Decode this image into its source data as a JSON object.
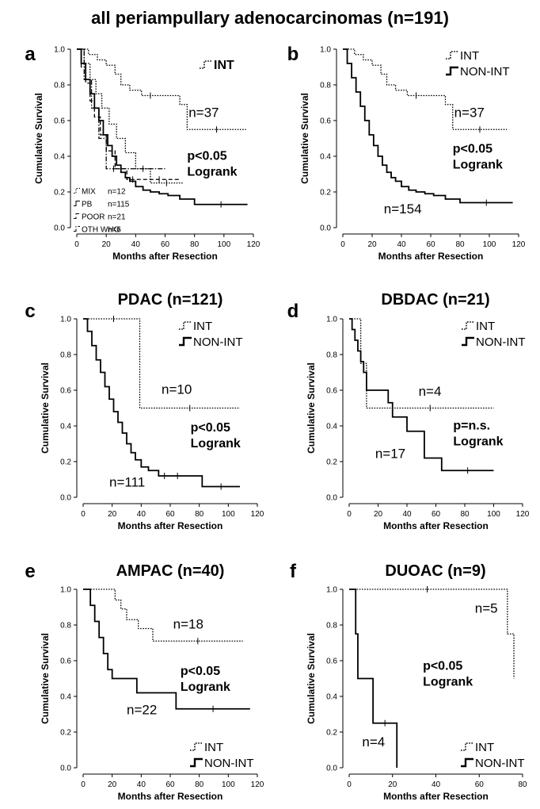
{
  "figure_title": "all periampullary adenocarcinomas (n=191)",
  "chart_data": [
    {
      "panel": "a",
      "title": "",
      "type": "line",
      "xlabel": "Months after Resection",
      "ylabel": "Cumulative Survival",
      "xlim": [
        0,
        120
      ],
      "ylim": [
        0,
        1
      ],
      "xticks": [
        0,
        20,
        40,
        60,
        80,
        100,
        120
      ],
      "yticks": [
        0.0,
        0.2,
        0.4,
        0.6,
        0.8,
        1.0
      ],
      "legend": [
        {
          "name": "INT",
          "style": "dotted"
        }
      ],
      "legend_small": [
        {
          "name": "MIX",
          "n": "n=12",
          "style": "dotted"
        },
        {
          "name": "PB",
          "n": "n=115",
          "style": "solid"
        },
        {
          "name": "POOR",
          "n": "n=21",
          "style": "dashed"
        },
        {
          "name": "OTH WHO",
          "n": "n=6",
          "style": "dashdot"
        }
      ],
      "annotations": [
        {
          "text": "n=37",
          "x": 76,
          "y": 0.62
        }
      ],
      "stat_lines": [
        "p<0.05",
        "Logrank"
      ],
      "stat_pos": [
        75,
        0.38
      ],
      "series": [
        {
          "name": "INT",
          "style": "dotted",
          "x": [
            0,
            8,
            14,
            20,
            26,
            30,
            36,
            44,
            56,
            70,
            75,
            115
          ],
          "y": [
            1.0,
            0.97,
            0.94,
            0.91,
            0.86,
            0.8,
            0.77,
            0.74,
            0.74,
            0.69,
            0.55,
            0.55
          ]
        },
        {
          "name": "PB",
          "style": "solid",
          "x": [
            0,
            3,
            6,
            9,
            12,
            15,
            18,
            21,
            24,
            27,
            30,
            33,
            36,
            40,
            45,
            50,
            56,
            62,
            70,
            80,
            116
          ],
          "y": [
            1.0,
            0.92,
            0.83,
            0.75,
            0.67,
            0.6,
            0.52,
            0.46,
            0.4,
            0.35,
            0.31,
            0.28,
            0.26,
            0.23,
            0.21,
            0.2,
            0.19,
            0.18,
            0.16,
            0.13,
            0.13
          ]
        },
        {
          "name": "MIX",
          "style": "dotted",
          "x": [
            0,
            5,
            9,
            13,
            17,
            22,
            27,
            33,
            40,
            50,
            72
          ],
          "y": [
            1.0,
            0.92,
            0.83,
            0.75,
            0.67,
            0.58,
            0.5,
            0.42,
            0.33,
            0.25,
            0.25
          ]
        },
        {
          "name": "POOR",
          "style": "dashed",
          "x": [
            0,
            3,
            6,
            9,
            12,
            16,
            20,
            26,
            34,
            42,
            70
          ],
          "y": [
            1.0,
            0.9,
            0.81,
            0.71,
            0.62,
            0.52,
            0.43,
            0.33,
            0.27,
            0.27,
            0.27
          ]
        },
        {
          "name": "OTH WHO",
          "style": "dashdot",
          "x": [
            0,
            5,
            10,
            15,
            20,
            30,
            60
          ],
          "y": [
            1.0,
            0.83,
            0.67,
            0.5,
            0.33,
            0.33,
            0.33
          ]
        }
      ]
    },
    {
      "panel": "b",
      "title": "",
      "type": "line",
      "xlabel": "Months after Resection",
      "ylabel": "Cumulative Survival",
      "xlim": [
        0,
        120
      ],
      "ylim": [
        0,
        1
      ],
      "xticks": [
        0,
        20,
        40,
        60,
        80,
        100,
        120
      ],
      "yticks": [
        0.0,
        0.2,
        0.4,
        0.6,
        0.8,
        1.0
      ],
      "legend": [
        {
          "name": "INT",
          "style": "dotted"
        },
        {
          "name": "NON-INT",
          "style": "solid"
        }
      ],
      "annotations": [
        {
          "text": "n=37",
          "x": 76,
          "y": 0.62
        },
        {
          "text": "n=154",
          "x": 28,
          "y": 0.08
        }
      ],
      "stat_lines": [
        "p<0.05",
        "Logrank"
      ],
      "stat_pos": [
        75,
        0.42
      ],
      "series": [
        {
          "name": "INT",
          "style": "dotted",
          "x": [
            0,
            8,
            14,
            20,
            26,
            30,
            36,
            44,
            56,
            70,
            75,
            112
          ],
          "y": [
            1.0,
            0.97,
            0.94,
            0.91,
            0.86,
            0.8,
            0.77,
            0.74,
            0.74,
            0.69,
            0.55,
            0.55
          ]
        },
        {
          "name": "NON-INT",
          "style": "solid",
          "x": [
            0,
            3,
            6,
            9,
            12,
            15,
            18,
            21,
            24,
            27,
            30,
            33,
            36,
            40,
            45,
            50,
            56,
            62,
            70,
            80,
            116
          ],
          "y": [
            1.0,
            0.92,
            0.84,
            0.76,
            0.68,
            0.6,
            0.52,
            0.46,
            0.4,
            0.35,
            0.31,
            0.28,
            0.26,
            0.23,
            0.21,
            0.2,
            0.19,
            0.18,
            0.16,
            0.14,
            0.14
          ]
        }
      ]
    },
    {
      "panel": "c",
      "title": "PDAC (n=121)",
      "type": "line",
      "xlabel": "Months after Resection",
      "ylabel": "Cumulative Survival",
      "xlim": [
        0,
        120
      ],
      "ylim": [
        0,
        1
      ],
      "xticks": [
        0,
        20,
        40,
        60,
        80,
        100,
        120
      ],
      "yticks": [
        0.0,
        0.2,
        0.4,
        0.6,
        0.8,
        1.0
      ],
      "legend": [
        {
          "name": "INT",
          "style": "dotted"
        },
        {
          "name": "NON-INT",
          "style": "solid"
        }
      ],
      "annotations": [
        {
          "text": "n=10",
          "x": 54,
          "y": 0.58
        },
        {
          "text": "n=111",
          "x": 18,
          "y": 0.06
        }
      ],
      "stat_lines": [
        "p<0.05",
        "Logrank"
      ],
      "stat_pos": [
        74,
        0.37
      ],
      "series": [
        {
          "name": "INT",
          "style": "dotted",
          "x": [
            0,
            3,
            39,
            39,
            108
          ],
          "y": [
            1.0,
            1.0,
            1.0,
            0.5,
            0.5
          ]
        },
        {
          "name": "NON-INT",
          "style": "solid",
          "x": [
            0,
            3,
            6,
            9,
            12,
            15,
            18,
            21,
            24,
            27,
            30,
            33,
            36,
            40,
            45,
            52,
            60,
            70,
            82,
            108
          ],
          "y": [
            1.0,
            0.93,
            0.85,
            0.77,
            0.7,
            0.62,
            0.55,
            0.48,
            0.42,
            0.36,
            0.3,
            0.25,
            0.21,
            0.17,
            0.15,
            0.12,
            0.12,
            0.12,
            0.06,
            0.06
          ]
        }
      ]
    },
    {
      "panel": "d",
      "title": "DBDAC (n=21)",
      "type": "line",
      "xlabel": "Months after Resection",
      "ylabel": "Cumulative Survival",
      "xlim": [
        0,
        120
      ],
      "ylim": [
        0,
        1
      ],
      "xticks": [
        0,
        20,
        40,
        60,
        80,
        100,
        120
      ],
      "yticks": [
        0.0,
        0.2,
        0.4,
        0.6,
        0.8,
        1.0
      ],
      "legend": [
        {
          "name": "INT",
          "style": "dotted"
        },
        {
          "name": "NON-INT",
          "style": "solid"
        }
      ],
      "annotations": [
        {
          "text": "n=4",
          "x": 48,
          "y": 0.57
        },
        {
          "text": "n=17",
          "x": 18,
          "y": 0.22
        }
      ],
      "stat_lines": [
        "p=n.s.",
        "Logrank"
      ],
      "stat_pos": [
        72,
        0.38
      ],
      "series": [
        {
          "name": "INT",
          "style": "dotted",
          "x": [
            0,
            8,
            11,
            12,
            100
          ],
          "y": [
            1.0,
            0.75,
            0.75,
            0.5,
            0.5
          ]
        },
        {
          "name": "NON-INT",
          "style": "solid",
          "x": [
            0,
            2,
            4,
            6,
            8,
            10,
            12,
            27,
            30,
            40,
            52,
            64,
            100
          ],
          "y": [
            1.0,
            0.94,
            0.88,
            0.82,
            0.76,
            0.7,
            0.6,
            0.53,
            0.45,
            0.37,
            0.22,
            0.15,
            0.15
          ]
        }
      ]
    },
    {
      "panel": "e",
      "title": "AMPAC (n=40)",
      "type": "line",
      "xlabel": "Months after Resection",
      "ylabel": "Cumulative Survival",
      "xlim": [
        0,
        120
      ],
      "ylim": [
        0,
        1
      ],
      "xticks": [
        0,
        20,
        40,
        60,
        80,
        100,
        120
      ],
      "yticks": [
        0.0,
        0.2,
        0.4,
        0.6,
        0.8,
        1.0
      ],
      "legend": [
        {
          "name": "INT",
          "style": "dotted"
        },
        {
          "name": "NON-INT",
          "style": "solid"
        }
      ],
      "annotations": [
        {
          "text": "n=18",
          "x": 62,
          "y": 0.78
        },
        {
          "text": "n=22",
          "x": 30,
          "y": 0.3
        }
      ],
      "stat_lines": [
        "p<0.05",
        "Logrank"
      ],
      "stat_pos": [
        67,
        0.52
      ],
      "series": [
        {
          "name": "INT",
          "style": "dotted",
          "x": [
            0,
            22,
            26,
            30,
            34,
            38,
            42,
            48,
            110
          ],
          "y": [
            1.0,
            0.94,
            0.89,
            0.83,
            0.83,
            0.78,
            0.78,
            0.71,
            0.71
          ]
        },
        {
          "name": "NON-INT",
          "style": "solid",
          "x": [
            0,
            5,
            8,
            11,
            14,
            17,
            20,
            25,
            37,
            64,
            115
          ],
          "y": [
            1.0,
            0.91,
            0.82,
            0.73,
            0.64,
            0.55,
            0.5,
            0.5,
            0.42,
            0.33,
            0.33
          ]
        }
      ]
    },
    {
      "panel": "f",
      "title": "DUOAC (n=9)",
      "type": "line",
      "xlabel": "Months after Resection",
      "ylabel": "Cumulative Survival",
      "xlim": [
        0,
        80
      ],
      "ylim": [
        0,
        1
      ],
      "xticks": [
        0,
        20,
        40,
        60,
        80
      ],
      "yticks": [
        0.0,
        0.2,
        0.4,
        0.6,
        0.8,
        1.0
      ],
      "legend": [
        {
          "name": "INT",
          "style": "dotted"
        },
        {
          "name": "NON-INT",
          "style": "solid"
        }
      ],
      "annotations": [
        {
          "text": "n=5",
          "x": 58,
          "y": 0.87
        },
        {
          "text": "n=4",
          "x": 6,
          "y": 0.12
        }
      ],
      "stat_lines": [
        "p<0.05",
        "Logrank"
      ],
      "stat_pos": [
        34,
        0.55
      ],
      "series": [
        {
          "name": "INT",
          "style": "dotted",
          "x": [
            0,
            72,
            73,
            75,
            76
          ],
          "y": [
            1.0,
            1.0,
            0.75,
            0.75,
            0.5
          ]
        },
        {
          "name": "NON-INT",
          "style": "solid",
          "x": [
            0,
            2,
            3,
            4,
            10,
            11,
            22,
            22
          ],
          "y": [
            1.0,
            1.0,
            0.75,
            0.5,
            0.5,
            0.25,
            0.25,
            0.0
          ]
        }
      ]
    }
  ]
}
